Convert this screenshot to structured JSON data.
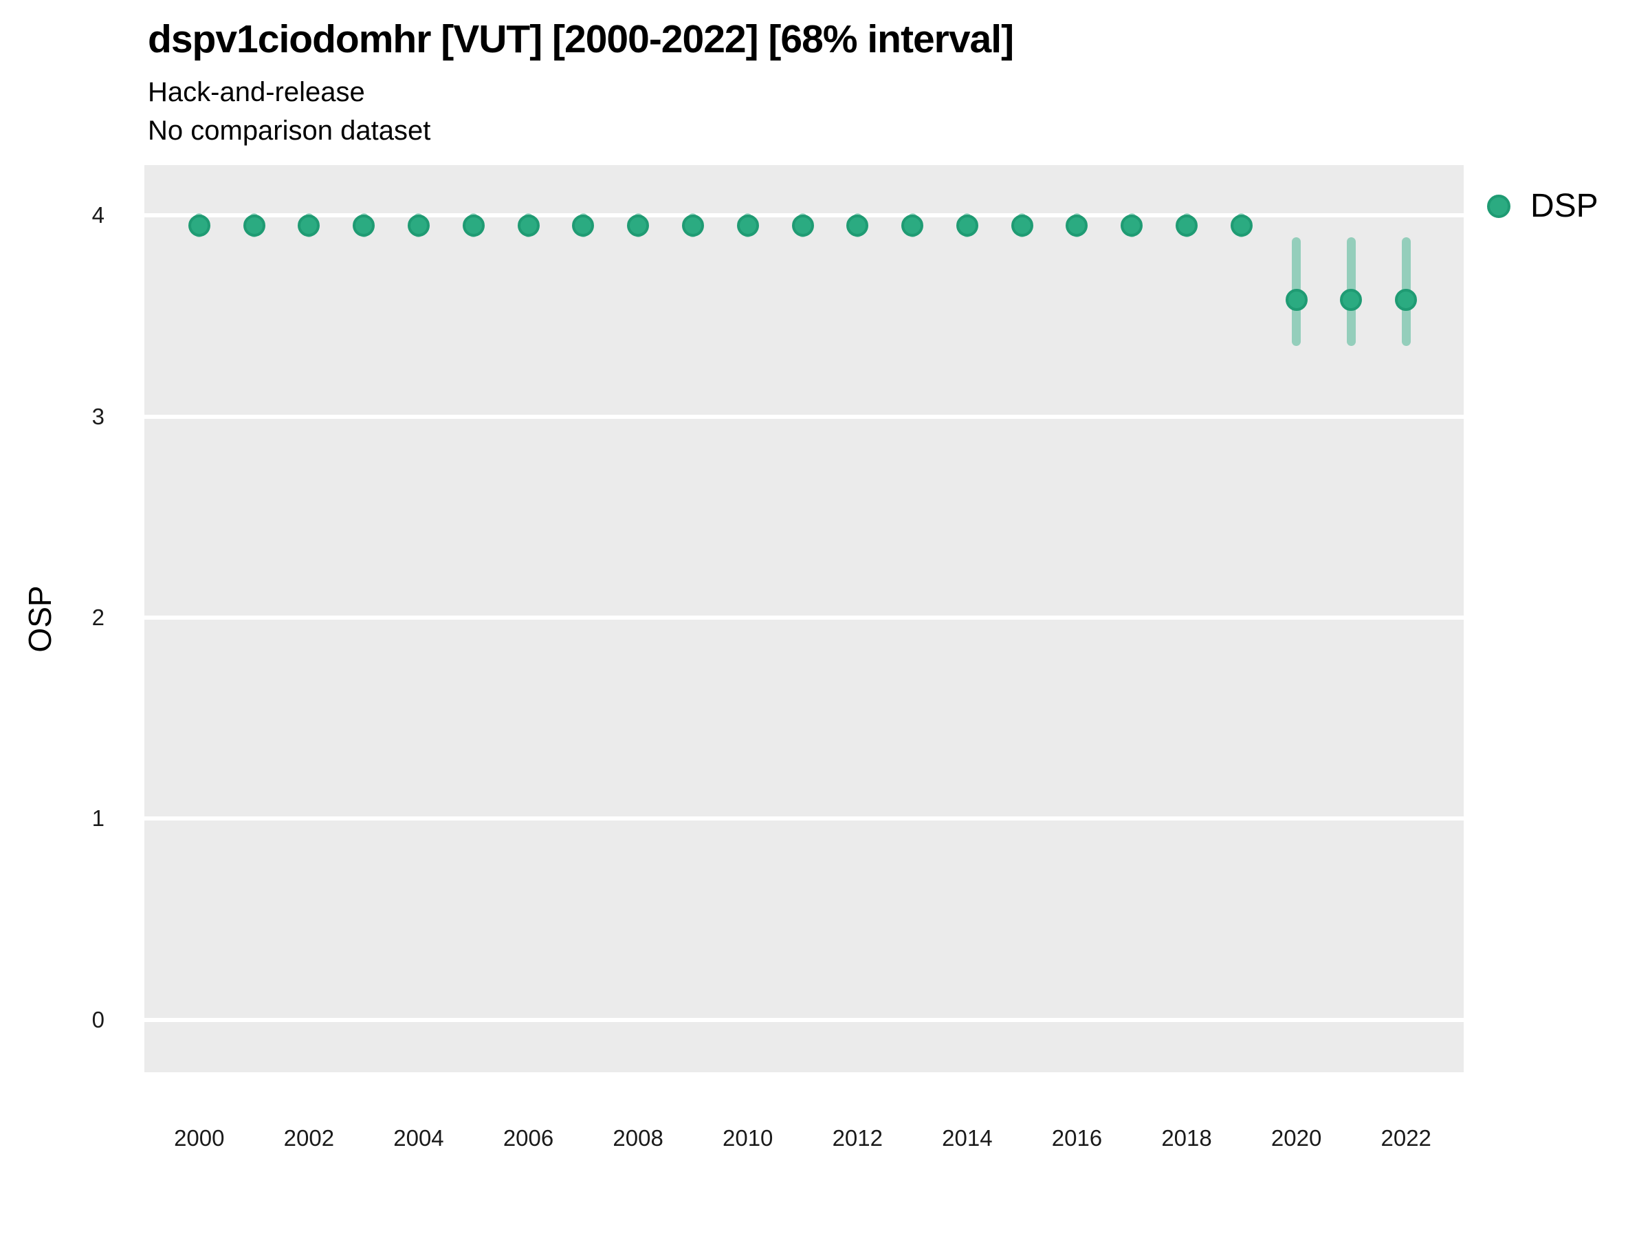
{
  "chart_data": {
    "type": "scatter",
    "title": "dspv1ciodomhr [VUT] [2000-2022] [68% interval]",
    "subtitle": "Hack-and-release",
    "subtitle2": "No comparison dataset",
    "xlabel": "",
    "ylabel": "OSP",
    "xlim": [
      1999.0,
      2023.05
    ],
    "ylim": [
      -0.26,
      4.25
    ],
    "xticks": [
      2000,
      2002,
      2004,
      2006,
      2008,
      2010,
      2012,
      2014,
      2016,
      2018,
      2020,
      2022
    ],
    "yticks": [
      0,
      1,
      2,
      3,
      4
    ],
    "grid": "horizontal-major-only",
    "panel_bg": "#EBEBEB",
    "grid_color": "#FFFFFF",
    "interval_level": "68%",
    "legend": {
      "position": "right",
      "entries": [
        {
          "label": "DSP",
          "color": "#2BAB81",
          "edge_color": "#1F9B73"
        }
      ]
    },
    "series": [
      {
        "name": "DSP",
        "point_color": "#2BAB81",
        "point_edge_color": "#1F9B73",
        "interval_color": "rgba(43, 171, 129, 0.45)",
        "points": [
          {
            "x": 2000,
            "y": 3.95,
            "lo": 3.89,
            "hi": 4.01
          },
          {
            "x": 2001,
            "y": 3.95,
            "lo": 3.89,
            "hi": 4.01
          },
          {
            "x": 2002,
            "y": 3.95,
            "lo": 3.89,
            "hi": 4.01
          },
          {
            "x": 2003,
            "y": 3.95,
            "lo": 3.89,
            "hi": 4.01
          },
          {
            "x": 2004,
            "y": 3.95,
            "lo": 3.89,
            "hi": 4.01
          },
          {
            "x": 2005,
            "y": 3.95,
            "lo": 3.89,
            "hi": 4.01
          },
          {
            "x": 2006,
            "y": 3.95,
            "lo": 3.89,
            "hi": 4.01
          },
          {
            "x": 2007,
            "y": 3.95,
            "lo": 3.89,
            "hi": 4.01
          },
          {
            "x": 2008,
            "y": 3.95,
            "lo": 3.89,
            "hi": 4.01
          },
          {
            "x": 2009,
            "y": 3.95,
            "lo": 3.89,
            "hi": 4.01
          },
          {
            "x": 2010,
            "y": 3.95,
            "lo": 3.89,
            "hi": 4.01
          },
          {
            "x": 2011,
            "y": 3.95,
            "lo": 3.89,
            "hi": 4.01
          },
          {
            "x": 2012,
            "y": 3.95,
            "lo": 3.89,
            "hi": 4.01
          },
          {
            "x": 2013,
            "y": 3.95,
            "lo": 3.89,
            "hi": 4.01
          },
          {
            "x": 2014,
            "y": 3.95,
            "lo": 3.89,
            "hi": 4.01
          },
          {
            "x": 2015,
            "y": 3.95,
            "lo": 3.89,
            "hi": 4.01
          },
          {
            "x": 2016,
            "y": 3.95,
            "lo": 3.89,
            "hi": 4.01
          },
          {
            "x": 2017,
            "y": 3.95,
            "lo": 3.89,
            "hi": 4.01
          },
          {
            "x": 2018,
            "y": 3.95,
            "lo": 3.89,
            "hi": 4.01
          },
          {
            "x": 2019,
            "y": 3.95,
            "lo": 3.89,
            "hi": 4.01
          },
          {
            "x": 2020,
            "y": 3.58,
            "lo": 3.35,
            "hi": 3.89
          },
          {
            "x": 2021,
            "y": 3.58,
            "lo": 3.35,
            "hi": 3.89
          },
          {
            "x": 2022,
            "y": 3.58,
            "lo": 3.35,
            "hi": 3.89
          }
        ]
      }
    ]
  }
}
